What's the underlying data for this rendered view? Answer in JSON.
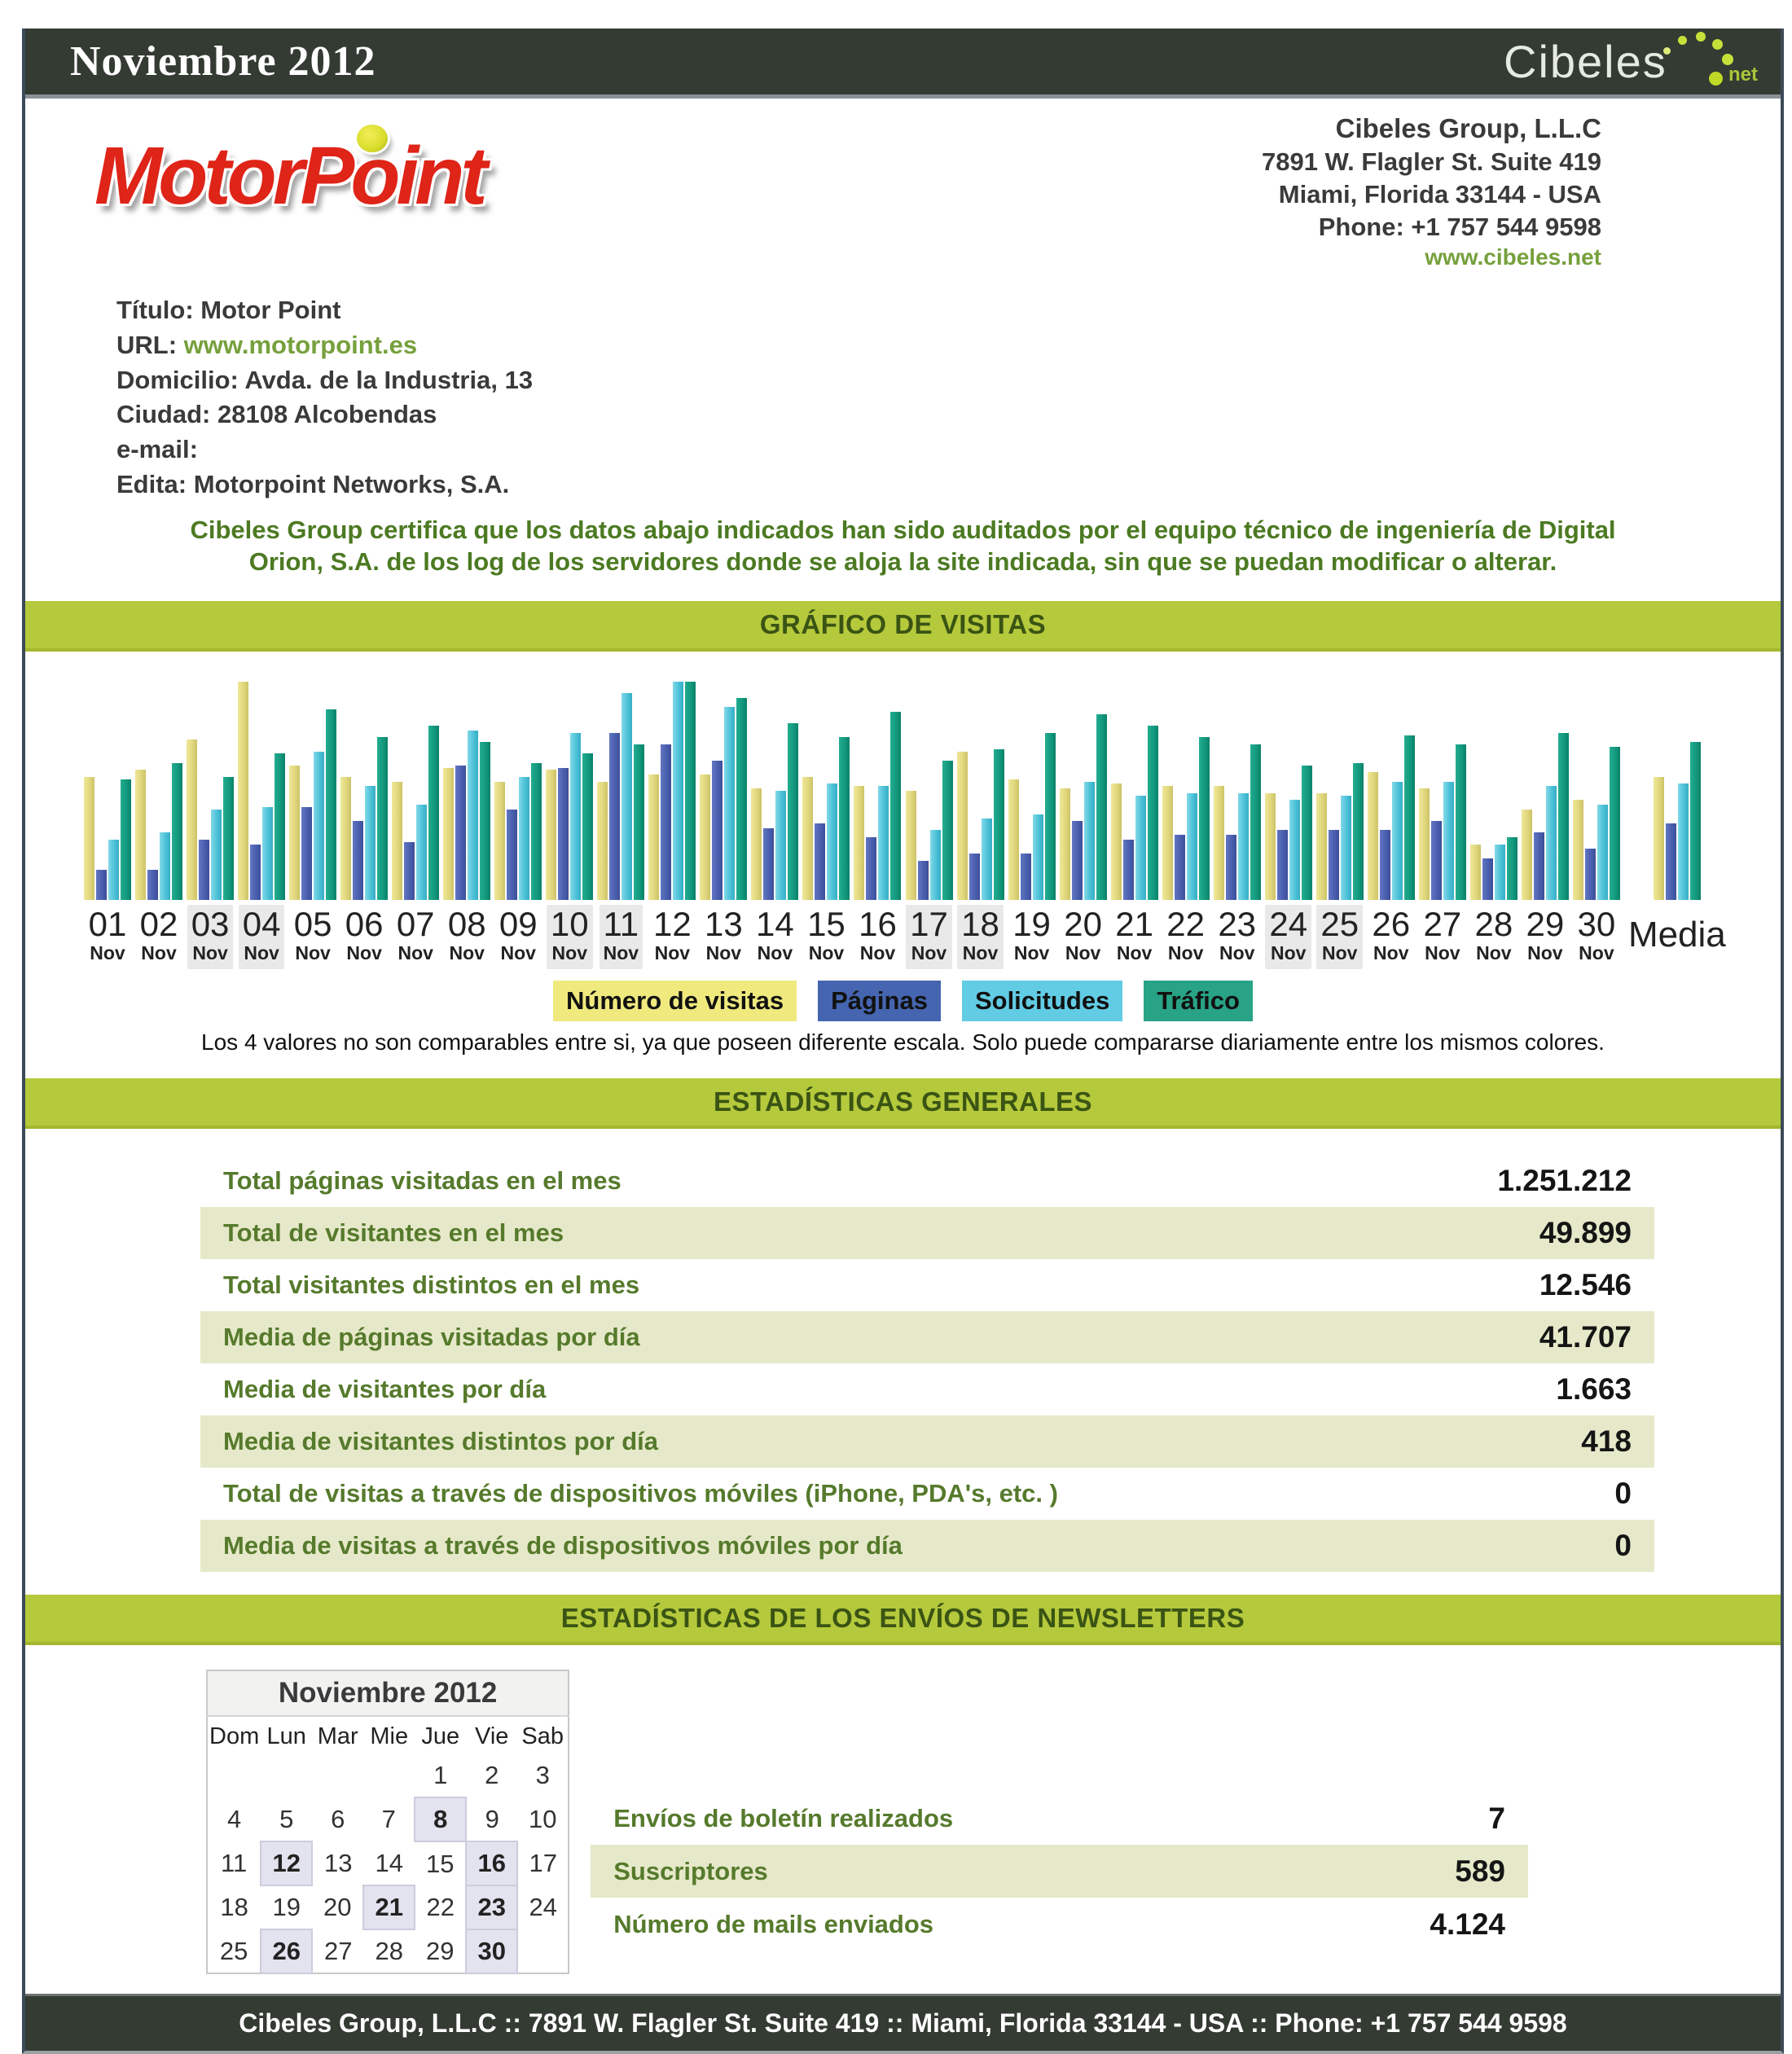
{
  "header": {
    "title": "Noviembre 2012",
    "logo": {
      "text": "Cibeles",
      "suffix": "net"
    }
  },
  "company": {
    "name": "Cibeles Group, L.L.C",
    "address1": "7891 W. Flagler St. Suite 419",
    "address2": "Miami, Florida 33144 - USA",
    "phone": "Phone: +1 757 544 9598",
    "website": "www.cibeles.net"
  },
  "site_logo_text": "MotorPoint",
  "site_info": {
    "rows": [
      {
        "label": "Título:",
        "value": "Motor Point",
        "link": false
      },
      {
        "label": "URL:",
        "value": "www.motorpoint.es",
        "link": true
      },
      {
        "label": "Domicilio:",
        "value": "Avda. de la Industria, 13",
        "link": false
      },
      {
        "label": "Ciudad:",
        "value": "28108 Alcobendas",
        "link": false
      },
      {
        "label": "e-mail:",
        "value": "",
        "link": false
      },
      {
        "label": "Edita:",
        "value": "Motorpoint Networks, S.A.",
        "link": false
      }
    ]
  },
  "certification": "Cibeles Group certifica que los datos abajo indicados han sido auditados por el equipo técnico de ingeniería de Digital Orion, S.A. de los log de los servidores donde se aloja la site indicada, sin que se puedan modificar o alterar.",
  "sections": {
    "chart": "GRÁFICO DE VISITAS",
    "general": "ESTADÍSTICAS GENERALES",
    "newsletters": "ESTADÍSTICAS DE LOS ENVÍOS DE NEWSLETTERS"
  },
  "chart_data": {
    "type": "bar",
    "title": "GRÁFICO DE VISITAS",
    "categories": [
      "01",
      "02",
      "03",
      "04",
      "05",
      "06",
      "07",
      "08",
      "09",
      "10",
      "11",
      "12",
      "13",
      "14",
      "15",
      "16",
      "17",
      "18",
      "19",
      "20",
      "21",
      "22",
      "23",
      "24",
      "25",
      "26",
      "27",
      "28",
      "29",
      "30",
      "Media"
    ],
    "month_label": "Nov",
    "weekend_days": [
      "03",
      "04",
      "10",
      "11",
      "17",
      "18",
      "24",
      "25"
    ],
    "series": [
      {
        "name": "Número de visitas",
        "color": "#E0D77D",
        "values": [
          53,
          56,
          69,
          94,
          58,
          53,
          51,
          57,
          51,
          56,
          51,
          54,
          54,
          48,
          53,
          49,
          47,
          64,
          52,
          48,
          50,
          49,
          49,
          46,
          46,
          55,
          48,
          24,
          39,
          43,
          53
        ]
      },
      {
        "name": "Páginas",
        "color": "#4A5FAF",
        "values": [
          13,
          13,
          26,
          24,
          40,
          34,
          25,
          58,
          39,
          57,
          72,
          67,
          60,
          31,
          33,
          27,
          17,
          20,
          20,
          34,
          26,
          28,
          28,
          30,
          30,
          30,
          34,
          18,
          29,
          22,
          33
        ]
      },
      {
        "name": "Solicitudes",
        "color": "#4EC2D8",
        "values": [
          26,
          29,
          39,
          40,
          64,
          49,
          41,
          73,
          53,
          72,
          89,
          94,
          83,
          47,
          50,
          49,
          30,
          35,
          37,
          51,
          45,
          46,
          46,
          43,
          45,
          51,
          51,
          24,
          49,
          41,
          50
        ]
      },
      {
        "name": "Tráfico",
        "color": "#13997E",
        "values": [
          52,
          59,
          53,
          63,
          82,
          70,
          75,
          68,
          59,
          63,
          67,
          94,
          87,
          76,
          70,
          81,
          60,
          65,
          72,
          80,
          75,
          70,
          67,
          58,
          59,
          71,
          67,
          27,
          72,
          66,
          68
        ]
      }
    ],
    "ylim": [
      0,
      100
    ],
    "xlabel": "",
    "ylabel": "",
    "legend_position": "bottom",
    "grid": false
  },
  "chart_note": "Los 4 valores no son comparables entre si, ya que poseen diferente escala. Solo puede compararse diariamente entre los mismos colores.",
  "general_stats": {
    "rows": [
      {
        "label": "Total páginas visitadas en el mes",
        "value": "1.251.212"
      },
      {
        "label": "Total de visitantes en el mes",
        "value": "49.899"
      },
      {
        "label": "Total visitantes distintos en el mes",
        "value": "12.546"
      },
      {
        "label": "Media de páginas visitadas por día",
        "value": "41.707"
      },
      {
        "label": "Media de visitantes por día",
        "value": "1.663"
      },
      {
        "label": "Media de visitantes distintos por día",
        "value": "418"
      },
      {
        "label": "Total de visitas a través de dispositivos móviles (iPhone, PDA's, etc. )",
        "value": "0"
      },
      {
        "label": "Media de visitas a través de dispositivos móviles por día",
        "value": "0"
      }
    ]
  },
  "newsletter_stats": {
    "rows": [
      {
        "label": "Envíos de boletín realizados",
        "value": "7"
      },
      {
        "label": "Suscriptores",
        "value": "589"
      },
      {
        "label": "Número de mails enviados",
        "value": "4.124"
      }
    ]
  },
  "calendar": {
    "title": "Noviembre 2012",
    "dow": [
      "Dom",
      "Lun",
      "Mar",
      "Mie",
      "Jue",
      "Vie",
      "Sab"
    ],
    "weeks": [
      [
        "",
        "",
        "",
        "",
        "1",
        "2",
        "3"
      ],
      [
        "4",
        "5",
        "6",
        "7",
        "8",
        "9",
        "10"
      ],
      [
        "11",
        "12",
        "13",
        "14",
        "15",
        "16",
        "17"
      ],
      [
        "18",
        "19",
        "20",
        "21",
        "22",
        "23",
        "24"
      ],
      [
        "25",
        "26",
        "27",
        "28",
        "29",
        "30",
        ""
      ]
    ],
    "sent_days": [
      "8",
      "12",
      "16",
      "21",
      "23",
      "26",
      "30"
    ]
  },
  "footer": "Cibeles Group, L.L.C :: 7891 W. Flagler St. Suite 419 :: Miami, Florida 33144 - USA :: Phone: +1 757 544 9598"
}
